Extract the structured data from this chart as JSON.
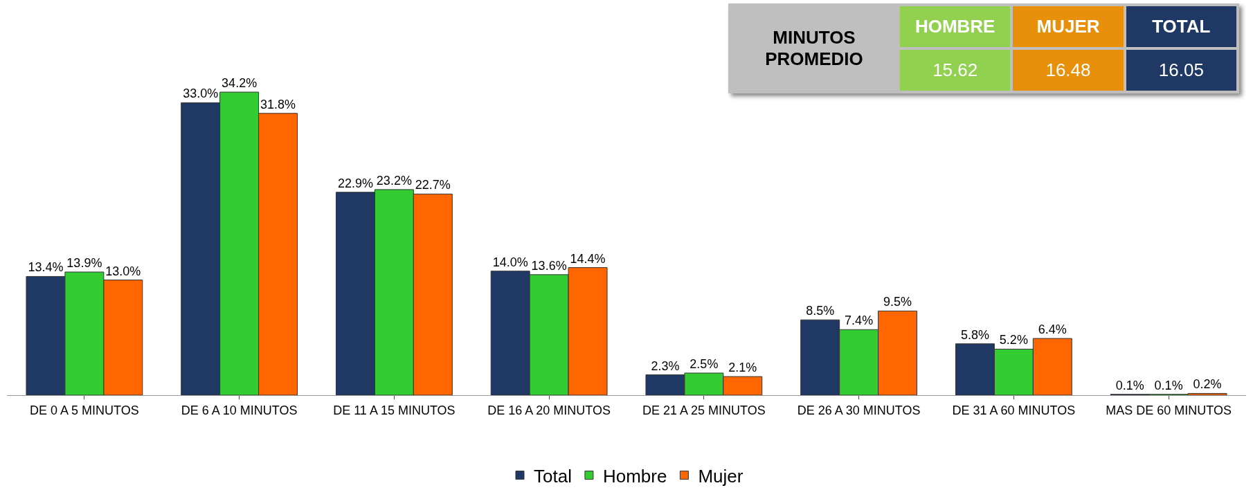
{
  "chart_data": [
    {
      "type": "bar",
      "categories": [
        "DE 0 A 5 MINUTOS",
        "DE 6 A 10 MINUTOS",
        "DE 11 A 15 MINUTOS",
        "DE 16 A 20 MINUTOS",
        "DE 21 A 25 MINUTOS",
        "DE 26 A 30 MINUTOS",
        "DE 31 A 60 MINUTOS",
        "MAS DE 60 MINUTOS"
      ],
      "series": [
        {
          "name": "Total",
          "color": "#1f3864",
          "values": [
            13.4,
            33.0,
            22.9,
            14.0,
            2.3,
            8.5,
            5.8,
            0.1
          ],
          "value_labels": [
            "13.4%",
            "33.0%",
            "22.9%",
            "14.0%",
            "2.3%",
            "8.5%",
            "5.8%",
            "0.1%"
          ]
        },
        {
          "name": "Hombre",
          "color": "#33cc33",
          "values": [
            13.9,
            34.2,
            23.2,
            13.6,
            2.5,
            7.4,
            5.2,
            0.1
          ],
          "value_labels": [
            "13.9%",
            "34.2%",
            "23.2%",
            "13.6%",
            "2.5%",
            "7.4%",
            "5.2%",
            "0.1%"
          ]
        },
        {
          "name": "Mujer",
          "color": "#ff6600",
          "values": [
            13.0,
            31.8,
            22.7,
            14.4,
            2.1,
            9.5,
            6.4,
            0.2
          ],
          "value_labels": [
            "13.0%",
            "31.8%",
            "22.7%",
            "14.4%",
            "2.1%",
            "9.5%",
            "6.4%",
            "0.2%"
          ]
        }
      ],
      "legend": "bottom"
    },
    {
      "type": "other",
      "title": "MINUTOS PROMEDIO",
      "categories": [
        "HOMBRE",
        "MUJER",
        "TOTAL"
      ],
      "values": [
        15.62,
        16.48,
        16.05
      ],
      "data_labels": true,
      "colors": [
        "#92d050",
        "#e8900c",
        "#1f3864"
      ]
    }
  ]
}
